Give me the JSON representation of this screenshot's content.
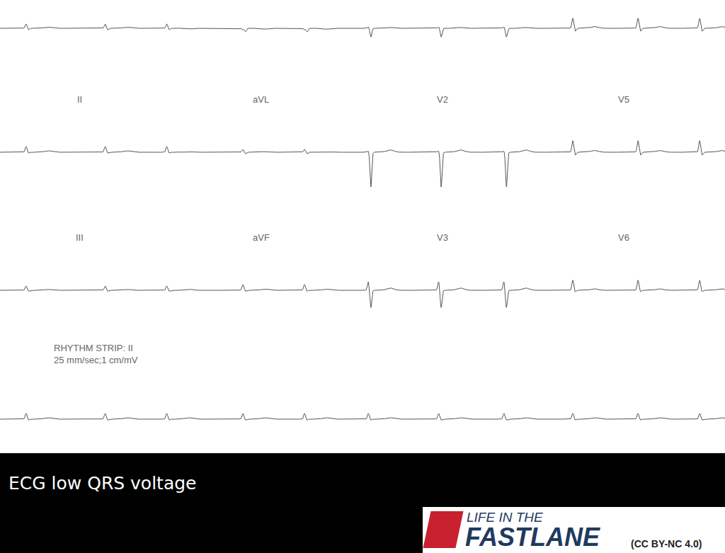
{
  "chart_data": {
    "type": "ecg",
    "xlim": [
      0,
      10
    ],
    "ylim": [
      -15.6,
      0
    ],
    "tick_labels": false,
    "color": "#555555",
    "beats": [
      0.36,
      1.45,
      2.3,
      3.35,
      4.2,
      5.08,
      6.05,
      6.95,
      7.9,
      8.8,
      9.65
    ],
    "rows": [
      {
        "columns": [
          {
            "r": 0.15,
            "s": -0.05,
            "t": 0.04
          },
          {
            "r": -0.05,
            "s": -0.12,
            "t": -0.03
          },
          {
            "r": 0.05,
            "s": -0.3,
            "t": 0.03
          },
          {
            "r": 0.35,
            "s": -0.1,
            "t": 0.06
          }
        ]
      },
      {
        "columns": [
          {
            "name": "II",
            "r": 0.2,
            "s": -0.03,
            "t": 0.05
          },
          {
            "name": "aVL",
            "r": 0.1,
            "s": -0.05,
            "t": 0.02
          },
          {
            "name": "V2",
            "r": 0.05,
            "s": -1.2,
            "t": 0.08
          },
          {
            "name": "V5",
            "r": 0.4,
            "s": -0.1,
            "t": 0.06
          }
        ]
      },
      {
        "columns": [
          {
            "name": "III",
            "r": 0.15,
            "s": -0.03,
            "t": 0.03
          },
          {
            "name": "aVF",
            "r": 0.2,
            "s": -0.03,
            "t": 0.04
          },
          {
            "name": "V3",
            "r": 0.3,
            "s": -0.6,
            "t": 0.08
          },
          {
            "name": "V6",
            "r": 0.35,
            "s": -0.05,
            "t": 0.05
          }
        ]
      },
      {
        "label": [
          "RHYTHM STRIP: II",
          "25 mm/sec;1 cm/mV"
        ],
        "columns": [
          {
            "r": 0.2,
            "s": -0.03,
            "t": 0.05
          }
        ]
      }
    ],
    "caption": "ECG low QRS voltage",
    "logo": {
      "line1": "LIFE IN THE",
      "line2": "FASTLANE",
      "license": "(CC BY-NC 4.0)"
    }
  }
}
